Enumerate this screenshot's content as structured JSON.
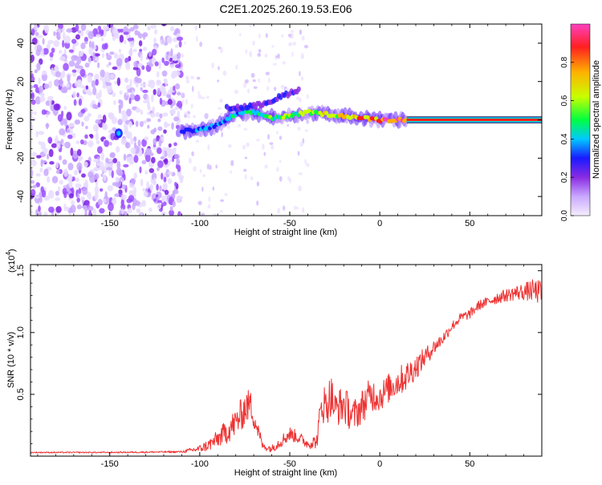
{
  "chart_data": [
    {
      "type": "heatmap",
      "title": "C2E1.2025.260.19.53.E06",
      "xlabel": "Height of straight line (km)",
      "ylabel": "Frequency (Hz)",
      "xlim": [
        -194,
        90
      ],
      "ylim": [
        -50,
        50
      ],
      "xticks": [
        -150,
        -100,
        -50,
        0,
        50
      ],
      "yticks": [
        -40,
        -20,
        0,
        20,
        40
      ],
      "colorbar": {
        "label": "Normalized spectral amplitude",
        "range": [
          0,
          1
        ],
        "ticks": [
          "0.0",
          "0.2",
          "0.4",
          "0.6",
          "0.8"
        ],
        "tick_values": [
          0,
          0.2,
          0.4,
          0.6,
          0.8
        ],
        "colors": [
          "#f5eeff",
          "#c9a8ff",
          "#8a2be2",
          "#1a1aff",
          "#00c8ff",
          "#00ff40",
          "#c8ff00",
          "#ffb000",
          "#ff2020",
          "#ff40c0"
        ]
      },
      "features": {
        "noise_region": {
          "x": [
            -194,
            -110
          ],
          "f": [
            -50,
            50
          ]
        },
        "trace": [
          {
            "x": -110,
            "f": -6
          },
          {
            "x": -100,
            "f": -5
          },
          {
            "x": -90,
            "f": -3
          },
          {
            "x": -80,
            "f": 3
          },
          {
            "x": -70,
            "f": 4
          },
          {
            "x": -60,
            "f": 1
          },
          {
            "x": -50,
            "f": 2
          },
          {
            "x": -40,
            "f": 4
          },
          {
            "x": -30,
            "f": 3
          },
          {
            "x": -20,
            "f": 2
          },
          {
            "x": -10,
            "f": 1
          },
          {
            "x": 0,
            "f": 0
          },
          {
            "x": 15,
            "f": 0
          },
          {
            "x": 90,
            "f": 0
          }
        ],
        "upper_branch": [
          {
            "x": -85,
            "f": 6
          },
          {
            "x": -70,
            "f": 7
          },
          {
            "x": -60,
            "f": 10
          },
          {
            "x": -50,
            "f": 14
          },
          {
            "x": -45,
            "f": 16
          }
        ],
        "steady_band": {
          "x": [
            15,
            90
          ],
          "f": 0
        }
      }
    },
    {
      "type": "line",
      "xlabel": "Height of straight line (km)",
      "ylabel": "SNR (10 * v/v)",
      "scale_label": "(x10",
      "scale_exponent": "4",
      "scale_suffix": ")",
      "xlim": [
        -194,
        90
      ],
      "ylim": [
        0,
        1.55
      ],
      "xticks": [
        -150,
        -100,
        -50,
        0,
        50
      ],
      "yticks": [
        0.5,
        1.0,
        1.5
      ],
      "ytick_labels": [
        "0.5",
        "1.0",
        "1.5"
      ],
      "series": [
        {
          "name": "SNR",
          "color": "#ee3333",
          "x": [
            -194,
            -150,
            -110,
            -100,
            -95,
            -90,
            -85,
            -80,
            -75,
            -72,
            -70,
            -67,
            -65,
            -60,
            -55,
            -50,
            -45,
            -40,
            -35,
            -32,
            -30,
            -27,
            -25,
            -20,
            -15,
            -10,
            -5,
            0,
            5,
            10,
            15,
            20,
            25,
            30,
            35,
            40,
            45,
            50,
            55,
            60,
            65,
            70,
            75,
            80,
            85,
            90
          ],
          "values": [
            0.03,
            0.03,
            0.035,
            0.06,
            0.09,
            0.14,
            0.2,
            0.27,
            0.38,
            0.43,
            0.32,
            0.18,
            0.08,
            0.06,
            0.12,
            0.18,
            0.15,
            0.1,
            0.12,
            0.45,
            0.4,
            0.5,
            0.38,
            0.42,
            0.32,
            0.4,
            0.5,
            0.48,
            0.55,
            0.6,
            0.65,
            0.72,
            0.8,
            0.88,
            0.95,
            1.05,
            1.12,
            1.15,
            1.22,
            1.25,
            1.28,
            1.3,
            1.32,
            1.33,
            1.34,
            1.32
          ],
          "noise": [
            0.005,
            0.005,
            0.008,
            0.03,
            0.05,
            0.07,
            0.1,
            0.12,
            0.14,
            0.12,
            0.1,
            0.06,
            0.03,
            0.03,
            0.05,
            0.06,
            0.05,
            0.04,
            0.06,
            0.18,
            0.16,
            0.18,
            0.14,
            0.16,
            0.13,
            0.14,
            0.14,
            0.12,
            0.12,
            0.12,
            0.12,
            0.1,
            0.08,
            0.06,
            0.05,
            0.04,
            0.04,
            0.04,
            0.04,
            0.04,
            0.05,
            0.05,
            0.06,
            0.07,
            0.09,
            0.1
          ]
        }
      ]
    }
  ]
}
